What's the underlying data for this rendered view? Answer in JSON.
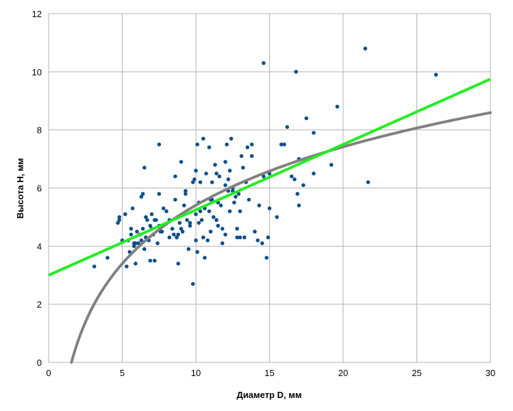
{
  "chart_data": {
    "type": "scatter",
    "title": "",
    "xlabel": "Диаметр D, мм",
    "ylabel": "Высота H, мм",
    "xlim": [
      0,
      30
    ],
    "ylim": [
      0,
      12
    ],
    "xticks": [
      "0",
      "5",
      "10",
      "15",
      "20",
      "25",
      "30"
    ],
    "yticks": [
      "0",
      "2",
      "4",
      "6",
      "8",
      "10",
      "12"
    ],
    "grid": true,
    "legend": "none",
    "colors": {
      "points": "#0d4f8b",
      "linear_trend": "#22ee22",
      "log_trend": "#808080",
      "grid": "#b3b3b3"
    },
    "points": {
      "x": [
        3.1,
        4.0,
        4.7,
        4.8,
        5.0,
        5.2,
        5.3,
        5.4,
        5.5,
        5.6,
        5.7,
        5.8,
        5.9,
        6.0,
        6.1,
        6.2,
        6.3,
        6.4,
        6.5,
        6.5,
        6.6,
        6.7,
        6.8,
        6.9,
        7.0,
        7.0,
        7.1,
        7.2,
        7.3,
        7.4,
        7.5,
        7.5,
        7.6,
        7.8,
        8.0,
        8.2,
        8.4,
        8.5,
        8.6,
        8.7,
        8.8,
        8.9,
        9.0,
        9.1,
        9.2,
        9.3,
        9.4,
        9.5,
        9.6,
        9.8,
        9.9,
        10.0,
        10.0,
        10.1,
        10.1,
        10.2,
        10.2,
        10.3,
        10.4,
        10.5,
        10.5,
        10.6,
        10.7,
        10.8,
        10.9,
        11.0,
        11.0,
        11.1,
        11.2,
        11.3,
        11.4,
        11.5,
        11.5,
        11.6,
        11.8,
        12.0,
        12.0,
        12.1,
        12.2,
        12.3,
        12.4,
        12.5,
        12.6,
        12.7,
        12.8,
        12.9,
        13.0,
        13.2,
        13.3,
        13.5,
        13.6,
        13.8,
        14.0,
        14.2,
        14.5,
        14.6,
        14.8,
        15.0,
        15.0,
        15.5,
        15.8,
        16.2,
        16.5,
        16.8,
        17.0,
        17.0,
        17.5,
        18.0,
        18.0,
        19.2,
        19.6,
        21.5,
        21.7,
        26.3,
        14.6,
        16.7,
        7.5,
        9.8,
        10.0,
        12.3,
        13.8,
        8.6,
        6.4,
        11.8,
        12.2,
        13.1,
        14.3,
        16.0,
        16.9,
        11.4,
        12.8,
        5.8,
        6.9,
        9.3,
        10.6,
        11.1,
        12.0,
        13.4,
        9.0,
        10.3,
        8.2,
        7.7,
        6.3,
        5.6,
        4.8,
        5.9,
        6.6,
        7.2,
        8.8,
        9.6,
        10.9,
        11.7,
        12.5,
        13.0,
        14.9,
        17.3
      ],
      "y": [
        3.3,
        3.6,
        4.8,
        5.0,
        4.2,
        5.1,
        3.3,
        4.2,
        3.8,
        4.6,
        5.3,
        4.1,
        3.4,
        4.5,
        4.1,
        4.4,
        5.7,
        4.6,
        3.9,
        6.7,
        4.3,
        4.9,
        4.2,
        3.5,
        4.6,
        5.1,
        4.4,
        3.5,
        4.9,
        4.1,
        5.8,
        4.7,
        4.5,
        5.3,
        5.2,
        4.3,
        4.6,
        4.4,
        6.4,
        4.3,
        3.4,
        4.8,
        6.9,
        4.5,
        5.4,
        5.8,
        4.9,
        3.9,
        4.7,
        2.7,
        6.3,
        4.2,
        5.1,
        3.8,
        7.5,
        5.5,
        4.8,
        6.2,
        4.9,
        7.7,
        4.3,
        3.6,
        6.5,
        4.2,
        7.4,
        5.6,
        4.5,
        6.2,
        5.0,
        6.8,
        6.5,
        4.7,
        5.5,
        6.4,
        4.6,
        4.4,
        6.9,
        7.5,
        6.3,
        5.2,
        7.7,
        6.0,
        5.5,
        5.7,
        4.3,
        5.8,
        4.3,
        6.7,
        4.3,
        7.4,
        5.6,
        7.5,
        4.5,
        4.2,
        4.1,
        10.3,
        3.6,
        6.5,
        5.3,
        5.0,
        7.5,
        8.1,
        6.4,
        10.0,
        7.0,
        5.4,
        8.4,
        7.9,
        6.5,
        6.8,
        8.8,
        10.8,
        6.2,
        9.9,
        6.4,
        6.3,
        7.5,
        6.2,
        6.6,
        6.6,
        7.1,
        5.6,
        5.8,
        4.1,
        5.9,
        7.1,
        5.4,
        7.5,
        5.8,
        4.9,
        4.6,
        4.0,
        4.7,
        5.9,
        5.3,
        5.6,
        6.1,
        6.2,
        4.6,
        5.2,
        4.9,
        4.5,
        4.2,
        4.4,
        4.9,
        4.1,
        5.0,
        4.9,
        4.4,
        4.8,
        5.2,
        5.4,
        5.9,
        5.2,
        4.3,
        6.1
      ]
    },
    "linear_trend": {
      "x": [
        0,
        30
      ],
      "y": [
        3.0,
        9.75
      ]
    },
    "log_trend": {
      "x_start": 1.55,
      "x_end": 30,
      "a": 2.9,
      "b": -1.27
    }
  }
}
